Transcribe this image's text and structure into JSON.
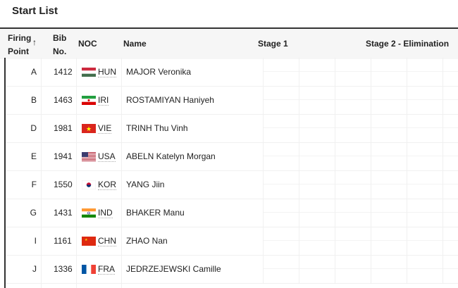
{
  "title": "Start List",
  "header": {
    "firing_point_1": "Firing",
    "firing_point_2": "Point",
    "sort_icon": "↑",
    "bib_1": "Bib",
    "bib_2": "No.",
    "noc": "NOC",
    "name": "Name",
    "stage1": "Stage 1",
    "stage2": "Stage 2 - Elimination"
  },
  "rows": [
    {
      "fp": "A",
      "bib": "1412",
      "noc": "HUN",
      "name": "MAJOR Veronika",
      "flag": "hun"
    },
    {
      "fp": "B",
      "bib": "1463",
      "noc": "IRI",
      "name": "ROSTAMIYAN Haniyeh",
      "flag": "iri"
    },
    {
      "fp": "D",
      "bib": "1981",
      "noc": "VIE",
      "name": "TRINH Thu Vinh",
      "flag": "vie"
    },
    {
      "fp": "E",
      "bib": "1941",
      "noc": "USA",
      "name": "ABELN Katelyn Morgan",
      "flag": "usa"
    },
    {
      "fp": "F",
      "bib": "1550",
      "noc": "KOR",
      "name": "YANG Jiin",
      "flag": "kor"
    },
    {
      "fp": "G",
      "bib": "1431",
      "noc": "IND",
      "name": "BHAKER Manu",
      "flag": "ind"
    },
    {
      "fp": "I",
      "bib": "1161",
      "noc": "CHN",
      "name": "ZHAO Nan",
      "flag": "chn"
    },
    {
      "fp": "J",
      "bib": "1336",
      "noc": "FRA",
      "name": "JEDRZEJEWSKI Camille",
      "flag": "fra"
    }
  ]
}
